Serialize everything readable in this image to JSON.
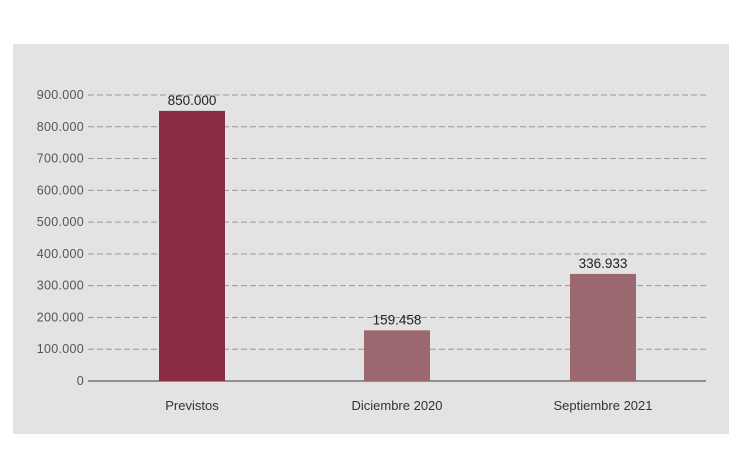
{
  "colors": {
    "background": "#e3e3e3",
    "bar_highlight": "#8b2c42",
    "bar_normal": "#9c6870",
    "grid": "#9a9a9a"
  },
  "chart_data": {
    "type": "bar",
    "title": "",
    "xlabel": "",
    "ylabel": "",
    "ylim": [
      0,
      900000
    ],
    "yticks": [
      0,
      100000,
      200000,
      300000,
      400000,
      500000,
      600000,
      700000,
      800000,
      900000
    ],
    "ytick_labels": [
      "0",
      "100.000",
      "200.000",
      "300.000",
      "400.000",
      "500.000",
      "600.000",
      "700.000",
      "800.000",
      "900.000"
    ],
    "categories": [
      "Previstos",
      "Diciembre 2020",
      "Septiembre 2021"
    ],
    "values": [
      850000,
      159458,
      336933
    ],
    "data_labels": [
      "850.000",
      "159.458",
      "336.933"
    ],
    "grid": true,
    "legend": "none"
  }
}
